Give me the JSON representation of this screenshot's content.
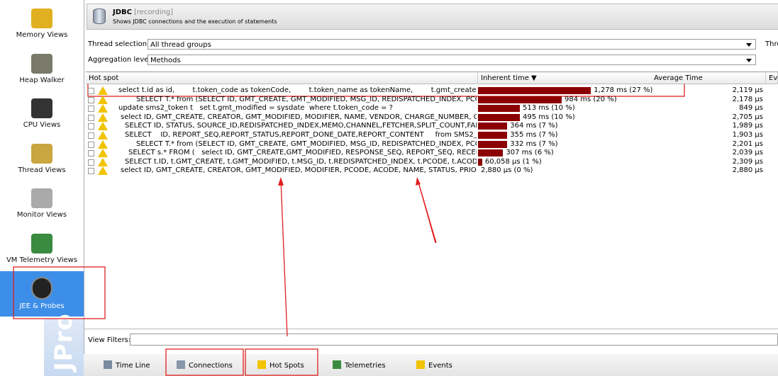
{
  "sidebar": {
    "items": [
      "Memory Views",
      "Heap Walker",
      "CPU Views",
      "Thread Views",
      "Monitor Views",
      "VM Telemetry Views",
      "JEE & Probes"
    ],
    "watermark": "JPro"
  },
  "header": {
    "title": "JDBC",
    "status": "[recording]",
    "subtitle": "Shows JDBC connections and the execution of statements"
  },
  "controls": {
    "thread_label": "Thread selection:",
    "thread_value": "All thread groups",
    "thread_extra": "Thre",
    "aggregation_label": "Aggregation level:",
    "aggregation_value": "Methods"
  },
  "table": {
    "columns": [
      "Hot spot",
      "Inherent time ▼",
      "Average Time",
      "Eve"
    ],
    "rows": [
      {
        "query": "select t.id as id,        t.token_code as tokenCode,        t.token_name as tokenName,        t.gmt_create as gmtC...",
        "percent": 27,
        "inherent_time": "1,278 ms (27 %)",
        "average_time": "2,119 µs"
      },
      {
        "query": "SELECT T.* from (SELECT ID, GMT_CREATE, GMT_MODIFIED, MSG_ID, REDISPATCHED_INDEX, PCODE, A...",
        "percent": 20,
        "inherent_time": "984 ms (20 %)",
        "average_time": "2,178 µs"
      },
      {
        "query": "update sms2_token t   set t.gmt_modified = sysdate  where t.token_code = ?",
        "percent": 10,
        "inherent_time": "513 ms (10 %)",
        "average_time": "849 µs"
      },
      {
        "query": "select ID, GMT_CREATE, CREATOR, GMT_MODIFIED, MODIFIER, NAME, VENDOR, CHARGE_NUMBER, OUT_IP,...",
        "percent": 10,
        "inherent_time": "495 ms (10 %)",
        "average_time": "2,705 µs"
      },
      {
        "query": "SELECT ID, STATUS, SOURCE_ID,REDISPATCHED_INDEX,MEMO,CHANNEL,FETCHER,SPLIT_COUNT,FAIL_CO...",
        "percent": 7,
        "inherent_time": "364 ms (7 %)",
        "average_time": "1,989 µs"
      },
      {
        "query": "SELECT    ID, REPORT_SEQ,REPORT_STATUS,REPORT_DONE_DATE,REPORT_CONTENT     from SMS2_MT_R...",
        "percent": 7,
        "inherent_time": "355 ms (7 %)",
        "average_time": "1,903 µs"
      },
      {
        "query": "SELECT T.* from (SELECT ID, GMT_CREATE, GMT_MODIFIED, MSG_ID, REDISPATCHED_INDEX, PCODE, A...",
        "percent": 7,
        "inherent_time": "332 ms (7 %)",
        "average_time": "2,201 µs"
      },
      {
        "query": "SELECT s.* FROM (   select ID, GMT_CREATE,GMT_MODIFIED, RESPONSE_SEQ, REPORT_SEQ, RECEIVER,C...",
        "percent": 6,
        "inherent_time": "307 ms (6 %)",
        "average_time": "2,039 µs"
      },
      {
        "query": "SELECT t.ID, t.GMT_CREATE, t.GMT_MODIFIED, t.MSG_ID, t.REDISPATCHED_INDEX, t.PCODE, t.ACODE, t.S...",
        "percent": 1,
        "inherent_time": "60,058 µs (1 %)",
        "average_time": "2,309 µs"
      },
      {
        "query": "select ID, GMT_CREATE, CREATOR, GMT_MODIFIED, MODIFIER, PCODE, ACODE, NAME, STATUS, PRIORITY, ...",
        "percent": 0,
        "inherent_time": "2,880 µs (0 %)",
        "average_time": "2,880 µs"
      }
    ]
  },
  "filters": {
    "label": "View Filters:"
  },
  "tabs": [
    "Time Line",
    "Connections",
    "Hot Spots",
    "Telemetries",
    "Events"
  ]
}
